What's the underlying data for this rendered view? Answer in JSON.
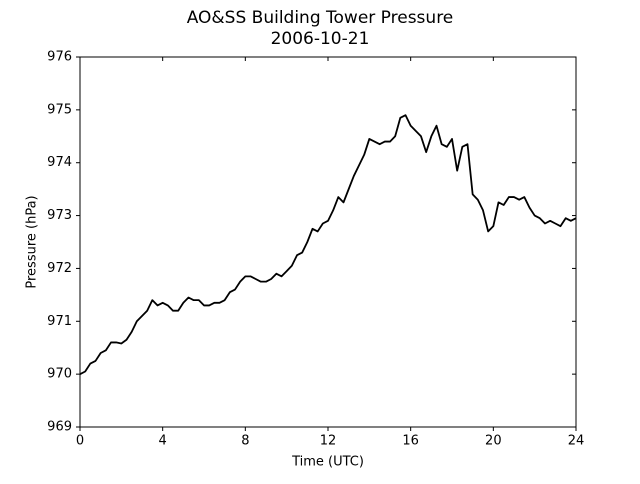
{
  "chart_data": {
    "type": "line",
    "title": "AO&SS Building Tower Pressure",
    "subtitle": "2006-10-21",
    "xlabel": "Time (UTC)",
    "ylabel": "Pressure (hPa)",
    "color": "#000000",
    "x": [
      0,
      0.25,
      0.5,
      0.75,
      1,
      1.25,
      1.5,
      1.75,
      2,
      2.25,
      2.5,
      2.75,
      3,
      3.25,
      3.5,
      3.75,
      4,
      4.25,
      4.5,
      4.75,
      5,
      5.25,
      5.5,
      5.75,
      6,
      6.25,
      6.5,
      6.75,
      7,
      7.25,
      7.5,
      7.75,
      8,
      8.25,
      8.5,
      8.75,
      9,
      9.25,
      9.5,
      9.75,
      10,
      10.25,
      10.5,
      10.75,
      11,
      11.25,
      11.5,
      11.75,
      12,
      12.25,
      12.5,
      12.75,
      13,
      13.25,
      13.5,
      13.75,
      14,
      14.25,
      14.5,
      14.75,
      15,
      15.25,
      15.5,
      15.75,
      16,
      16.25,
      16.5,
      16.75,
      17,
      17.25,
      17.5,
      17.75,
      18,
      18.25,
      18.5,
      18.75,
      19,
      19.25,
      19.5,
      19.75,
      20,
      20.25,
      20.5,
      20.75,
      21,
      21.25,
      21.5,
      21.75,
      22,
      22.25,
      22.5,
      22.75,
      23,
      23.25,
      23.5,
      23.75,
      24
    ],
    "values": [
      970.0,
      970.05,
      970.2,
      970.25,
      970.4,
      970.45,
      970.6,
      970.6,
      970.58,
      970.65,
      970.8,
      971.0,
      971.1,
      971.2,
      971.4,
      971.3,
      971.35,
      971.3,
      971.2,
      971.2,
      971.35,
      971.45,
      971.4,
      971.4,
      971.3,
      971.3,
      971.35,
      971.35,
      971.4,
      971.55,
      971.6,
      971.75,
      971.85,
      971.85,
      971.8,
      971.75,
      971.75,
      971.8,
      971.9,
      971.85,
      971.95,
      972.05,
      972.25,
      972.3,
      972.5,
      972.75,
      972.7,
      972.85,
      972.9,
      973.1,
      973.35,
      973.25,
      973.5,
      973.75,
      973.95,
      974.15,
      974.45,
      974.4,
      974.35,
      974.4,
      974.4,
      974.5,
      974.85,
      974.9,
      974.7,
      974.6,
      974.5,
      974.2,
      974.5,
      974.7,
      974.35,
      974.3,
      974.45,
      973.85,
      974.3,
      974.35,
      973.4,
      973.3,
      973.1,
      972.7,
      972.8,
      973.25,
      973.2,
      973.35,
      973.35,
      973.3,
      973.35,
      973.15,
      973.0,
      972.95,
      972.85,
      972.9,
      972.85,
      972.8,
      972.95,
      972.9,
      972.95
    ],
    "xlim": [
      0,
      24
    ],
    "xticks": [
      0,
      4,
      8,
      12,
      16,
      20,
      24
    ],
    "ylim": [
      969,
      976
    ],
    "yticks": [
      969,
      970,
      971,
      972,
      973,
      974,
      975,
      976
    ]
  }
}
